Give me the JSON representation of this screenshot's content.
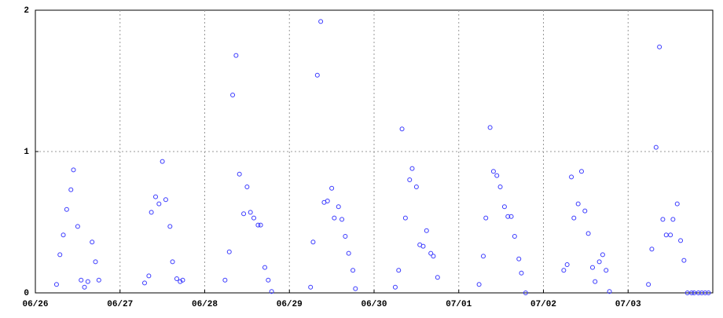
{
  "chart_data": {
    "type": "scatter",
    "color": "#3a3aff",
    "grid": true,
    "xlim": [
      0,
      8
    ],
    "ylim": [
      0,
      2
    ],
    "yticks": [
      0,
      1,
      2
    ],
    "xticks": [
      {
        "value": 0,
        "label": "06/26"
      },
      {
        "value": 1,
        "label": "06/27"
      },
      {
        "value": 2,
        "label": "06/28"
      },
      {
        "value": 3,
        "label": "06/29"
      },
      {
        "value": 4,
        "label": "06/30"
      },
      {
        "value": 5,
        "label": "07/01"
      },
      {
        "value": 6,
        "label": "07/02"
      },
      {
        "value": 7,
        "label": "07/03"
      }
    ],
    "x": [
      0.25,
      0.29,
      0.33,
      0.37,
      0.42,
      0.45,
      0.5,
      0.54,
      0.58,
      0.62,
      0.67,
      0.71,
      0.75,
      1.29,
      1.34,
      1.37,
      1.42,
      1.46,
      1.5,
      1.54,
      1.59,
      1.62,
      1.67,
      1.71,
      1.74,
      2.24,
      2.29,
      2.33,
      2.37,
      2.41,
      2.46,
      2.5,
      2.54,
      2.58,
      2.63,
      2.66,
      2.71,
      2.75,
      2.79,
      3.25,
      3.28,
      3.33,
      3.37,
      3.41,
      3.45,
      3.5,
      3.53,
      3.58,
      3.62,
      3.66,
      3.7,
      3.75,
      3.78,
      4.25,
      4.29,
      4.33,
      4.37,
      4.42,
      4.45,
      4.5,
      4.54,
      4.58,
      4.62,
      4.67,
      4.7,
      4.75,
      5.24,
      5.29,
      5.32,
      5.37,
      5.41,
      5.45,
      5.49,
      5.54,
      5.58,
      5.62,
      5.66,
      5.71,
      5.74,
      5.79,
      6.24,
      6.28,
      6.33,
      6.36,
      6.41,
      6.45,
      6.49,
      6.53,
      6.58,
      6.61,
      6.66,
      6.7,
      6.74,
      6.78,
      7.24,
      7.28,
      7.33,
      7.37,
      7.41,
      7.45,
      7.5,
      7.53,
      7.58,
      7.62,
      7.66,
      7.7,
      7.75,
      7.78,
      7.83,
      7.87,
      7.91,
      7.95
    ],
    "values": [
      0.06,
      0.27,
      0.41,
      0.59,
      0.73,
      0.87,
      0.47,
      0.09,
      0.04,
      0.08,
      0.36,
      0.22,
      0.09,
      0.07,
      0.12,
      0.57,
      0.68,
      0.63,
      0.93,
      0.66,
      0.47,
      0.22,
      0.1,
      0.08,
      0.09,
      0.09,
      0.29,
      1.4,
      1.68,
      0.84,
      0.56,
      0.75,
      0.57,
      0.53,
      0.48,
      0.48,
      0.18,
      0.09,
      0.01,
      0.04,
      0.36,
      1.54,
      1.92,
      0.64,
      0.65,
      0.74,
      0.53,
      0.61,
      0.52,
      0.4,
      0.28,
      0.16,
      0.03,
      0.04,
      0.16,
      1.16,
      0.53,
      0.8,
      0.88,
      0.75,
      0.34,
      0.33,
      0.44,
      0.28,
      0.26,
      0.11,
      0.06,
      0.26,
      0.53,
      1.17,
      0.86,
      0.83,
      0.75,
      0.61,
      0.54,
      0.54,
      0.4,
      0.24,
      0.14,
      0,
      0.16,
      0.2,
      0.82,
      0.53,
      0.63,
      0.86,
      0.58,
      0.42,
      0.18,
      0.08,
      0.22,
      0.27,
      0.16,
      0.01,
      0.06,
      0.31,
      1.03,
      1.74,
      0.52,
      0.41,
      0.41,
      0.52,
      0.63,
      0.37,
      0.23,
      0,
      0,
      0,
      0,
      0,
      0,
      0
    ]
  }
}
